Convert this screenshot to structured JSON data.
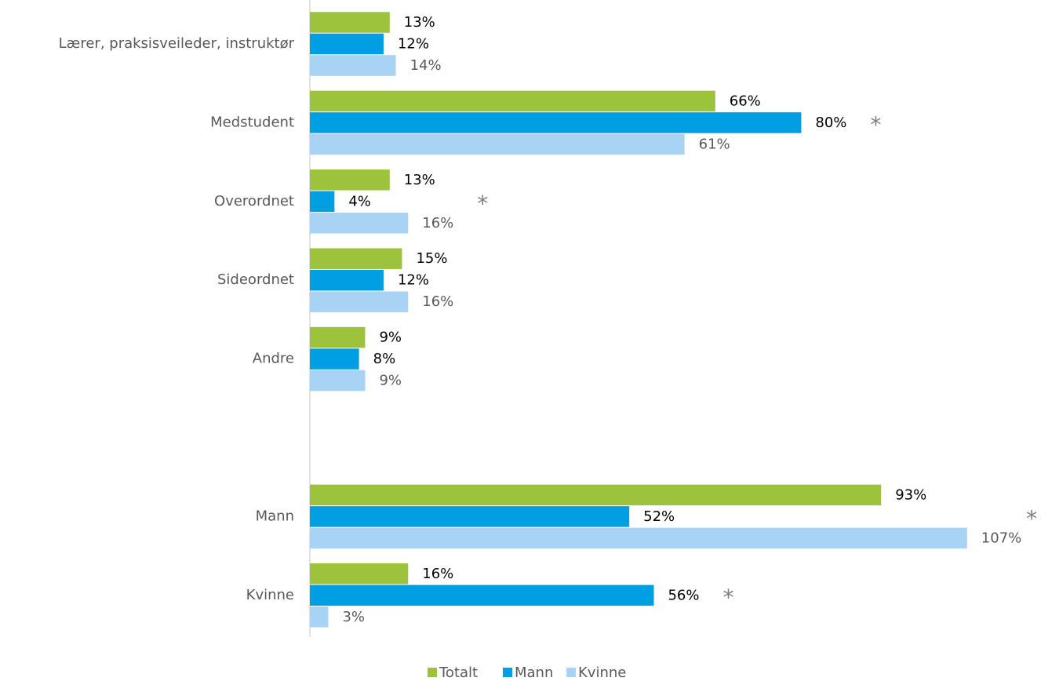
{
  "chart_data": {
    "type": "bar",
    "orientation": "horizontal",
    "categories": [
      "Lærer, praksisveileder, instruktør",
      "Medstudent",
      "Overordnet",
      "Sideordnet",
      "Andre",
      null,
      "Mann",
      "Kvinne"
    ],
    "series": [
      {
        "name": "Totalt",
        "color": "#9dc23b",
        "values": [
          13,
          66,
          13,
          15,
          9,
          null,
          93,
          16
        ],
        "value_labels": [
          "13%",
          "66%",
          "13%",
          "15%",
          "9%",
          null,
          "93%",
          "16%"
        ]
      },
      {
        "name": "Mann",
        "color": "#009fe3",
        "values": [
          12,
          80,
          4,
          12,
          8,
          null,
          52,
          56
        ],
        "value_labels": [
          "12%",
          "80%",
          "4%",
          "12%",
          "8%",
          null,
          "52%",
          "56%"
        ]
      },
      {
        "name": "Kvinne",
        "color": "#a9d3f5",
        "values": [
          14,
          61,
          16,
          16,
          9,
          null,
          107,
          3
        ],
        "value_labels": [
          "14%",
          "61%",
          "16%",
          "16%",
          "9%",
          null,
          "107%",
          "3%"
        ]
      }
    ],
    "significance": [
      null,
      "*",
      "*",
      null,
      null,
      null,
      "*",
      "*"
    ],
    "legend": "bottom"
  }
}
